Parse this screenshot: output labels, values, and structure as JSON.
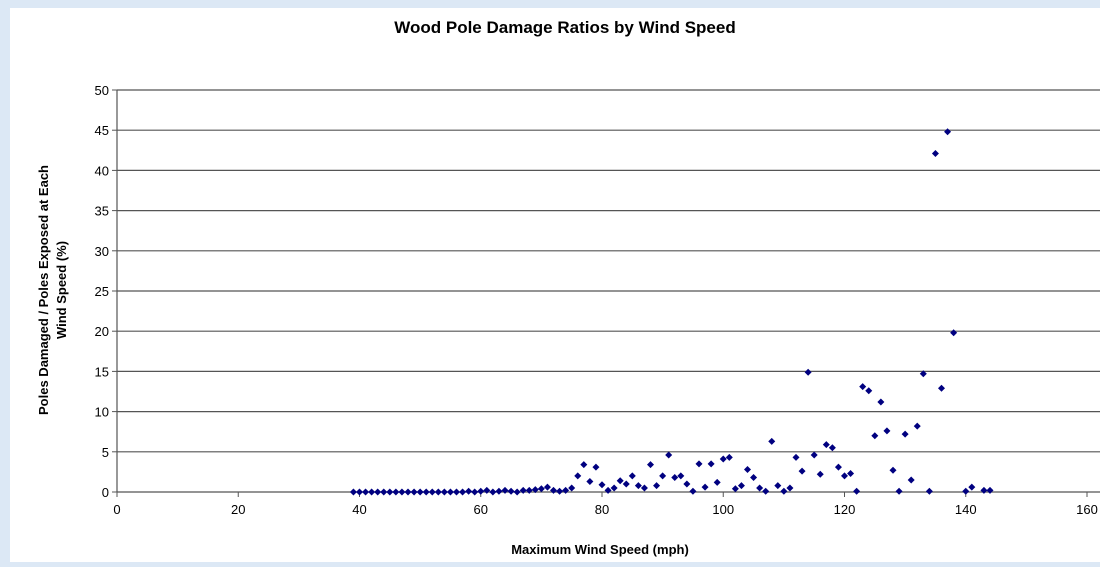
{
  "chart_data": {
    "type": "scatter",
    "title": "Wood Pole Damage Ratios by Wind Speed",
    "xlabel": "Maximum Wind Speed (mph)",
    "ylabel": [
      "Poles Damaged / Poles Exposed at Each",
      "Wind Speed (%)"
    ],
    "xlim": [
      0,
      160
    ],
    "xticks": [
      0,
      20,
      40,
      60,
      80,
      100,
      120,
      140,
      160
    ],
    "ylim": [
      0,
      50
    ],
    "yticks": [
      0,
      5,
      10,
      15,
      20,
      25,
      30,
      35,
      40,
      45,
      50
    ],
    "grid": true,
    "color": "#000080",
    "x": [
      39,
      40,
      41,
      42,
      43,
      44,
      45,
      46,
      47,
      48,
      49,
      50,
      51,
      52,
      53,
      54,
      55,
      56,
      57,
      58,
      59,
      60,
      61,
      62,
      63,
      64,
      65,
      66,
      67,
      68,
      69,
      70,
      71,
      72,
      73,
      74,
      75,
      76,
      77,
      78,
      79,
      80,
      81,
      82,
      83,
      84,
      85,
      86,
      87,
      88,
      89,
      90,
      91,
      92,
      93,
      94,
      95,
      96,
      97,
      98,
      99,
      100,
      101,
      102,
      103,
      104,
      105,
      106,
      107,
      108,
      109,
      110,
      111,
      112,
      113,
      114,
      115,
      116,
      117,
      118,
      119,
      120,
      121,
      122,
      123,
      124,
      125,
      126,
      127,
      128,
      129,
      130,
      131,
      132,
      133,
      134,
      135,
      136,
      137,
      138,
      140,
      141,
      143,
      144
    ],
    "values": [
      0,
      0,
      0,
      0,
      0,
      0,
      0,
      0,
      0,
      0,
      0,
      0,
      0,
      0,
      0,
      0,
      0,
      0,
      0,
      0.1,
      0,
      0.1,
      0.2,
      0,
      0.1,
      0.2,
      0.1,
      0,
      0.2,
      0.2,
      0.3,
      0.4,
      0.6,
      0.2,
      0.1,
      0.2,
      0.5,
      2.0,
      3.4,
      1.3,
      3.1,
      0.9,
      0.2,
      0.5,
      1.4,
      1.0,
      2.0,
      0.8,
      0.5,
      3.4,
      0.8,
      2.0,
      4.6,
      1.8,
      2.0,
      1.0,
      0.1,
      3.5,
      0.6,
      3.5,
      1.2,
      4.1,
      4.3,
      0.4,
      0.8,
      2.8,
      1.8,
      0.5,
      0.1,
      6.3,
      0.8,
      0.1,
      0.5,
      4.3,
      2.6,
      14.9,
      4.6,
      2.2,
      5.9,
      5.5,
      3.1,
      2.0,
      2.3,
      0.1,
      13.1,
      12.6,
      7.0,
      11.2,
      7.6,
      2.7,
      0.1,
      7.2,
      1.5,
      8.2,
      14.7,
      0.1,
      42.1,
      12.9,
      44.8,
      19.8,
      0.1,
      0.6,
      0.2,
      0.2
    ]
  }
}
